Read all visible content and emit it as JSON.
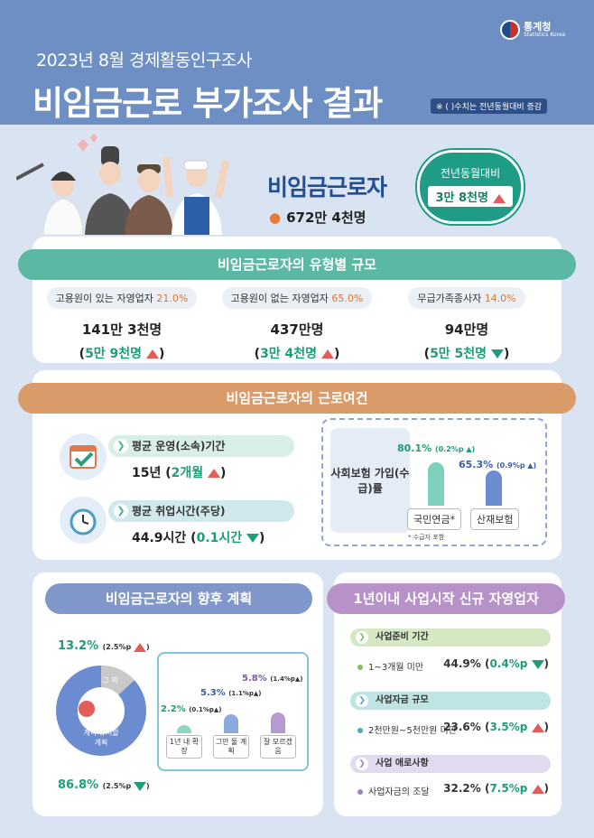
{
  "header": {
    "subtitle": "2023년 8월 경제활동인구조사",
    "title": "비임금근로 부가조사 결과",
    "note": "※ ( )수치는 전년동월대비 증감",
    "logo_ko": "통계청",
    "logo_en": "Statistics Korea"
  },
  "hero": {
    "title": "비임금근로자",
    "value": "672만 4천명",
    "yoy_label": "전년동월대비",
    "yoy_value": "3만 8천명",
    "yoy_direction": "up"
  },
  "types": {
    "heading": "비임금근로자의 유형별 규모",
    "items": [
      {
        "label": "고용원이 있는 자영업자",
        "pct": "21.0%",
        "value": "141만 3천명",
        "change": "5만 9천명",
        "direction": "up"
      },
      {
        "label": "고용원이 없는 자영업자",
        "pct": "65.0%",
        "value": "437만명",
        "change": "3만 4천명",
        "direction": "up"
      },
      {
        "label": "무급가족종사자",
        "pct": "14.0%",
        "value": "94만명",
        "change": "5만 5천명",
        "direction": "down"
      }
    ]
  },
  "work": {
    "heading": "비임금근로자의 근로여건",
    "operation": {
      "label": "평균 운영(소속)기간",
      "value": "15년",
      "change": "2개월",
      "direction": "up"
    },
    "hours": {
      "label": "평균 취업시간(주당)",
      "value": "44.9시간",
      "change": "0.1시간",
      "direction": "down"
    },
    "insurance": {
      "label": "사회보험 가입(수급)률",
      "footnote": "* 수급자 포함",
      "bars": [
        {
          "name": "국민연금*",
          "value": 80.1,
          "value_text": "80.1%",
          "change": "0.2%p",
          "direction": "up",
          "color": "#7fd1bd"
        },
        {
          "name": "산재보험",
          "value": 65.3,
          "value_text": "65.3%",
          "change": "0.9%p",
          "direction": "up",
          "color": "#6b8cd0"
        }
      ]
    }
  },
  "plan": {
    "heading": "비임금근로자의 향후 계획",
    "other_label": "그 외",
    "other_pct": "13.2%",
    "other_change": "2.5%p",
    "other_value": 13.2,
    "keep_label": "계속 유지할 계획",
    "keep_pct": "86.8%",
    "keep_change": "2.5%p",
    "keep_value": 86.8,
    "bars": [
      {
        "name": "1년 내 확장",
        "value": 2.2,
        "value_text": "2.2%",
        "change": "0.1%p",
        "direction": "up",
        "color": "#8fd6c2"
      },
      {
        "name": "그만 둘 계획",
        "value": 5.3,
        "value_text": "5.3%",
        "change": "1.1%p",
        "direction": "up",
        "color": "#8aa9dc"
      },
      {
        "name": "잘 모르겠음",
        "value": 5.8,
        "value_text": "5.8%",
        "change": "1.4%p",
        "direction": "up",
        "color": "#b59bd0"
      }
    ]
  },
  "startup": {
    "heading": "1년이내 사업시작 신규 자영업자",
    "sections": [
      {
        "label": "사업준비 기간",
        "item": "1~3개월 미만",
        "value": "44.9%",
        "change": "0.4%p",
        "direction": "down",
        "color": "#d4e8c4",
        "dot": "#7cc35a"
      },
      {
        "label": "사업자금 규모",
        "item": "2천만원~5천만원 미만",
        "value": "23.6%",
        "change": "3.5%p",
        "direction": "up",
        "color": "#bfe4e4",
        "dot": "#4aa7c4"
      },
      {
        "label": "사업 애로사항",
        "item": "사업자금의 조달",
        "value": "32.2%",
        "change": "7.5%p",
        "direction": "up",
        "color": "#e2dbef",
        "dot": "#9d83c4"
      }
    ]
  },
  "colors": {
    "header": "#6e8fc4",
    "accent_green": "#1f9c79",
    "accent_red": "#e45c58",
    "title_blue": "#214f92"
  }
}
